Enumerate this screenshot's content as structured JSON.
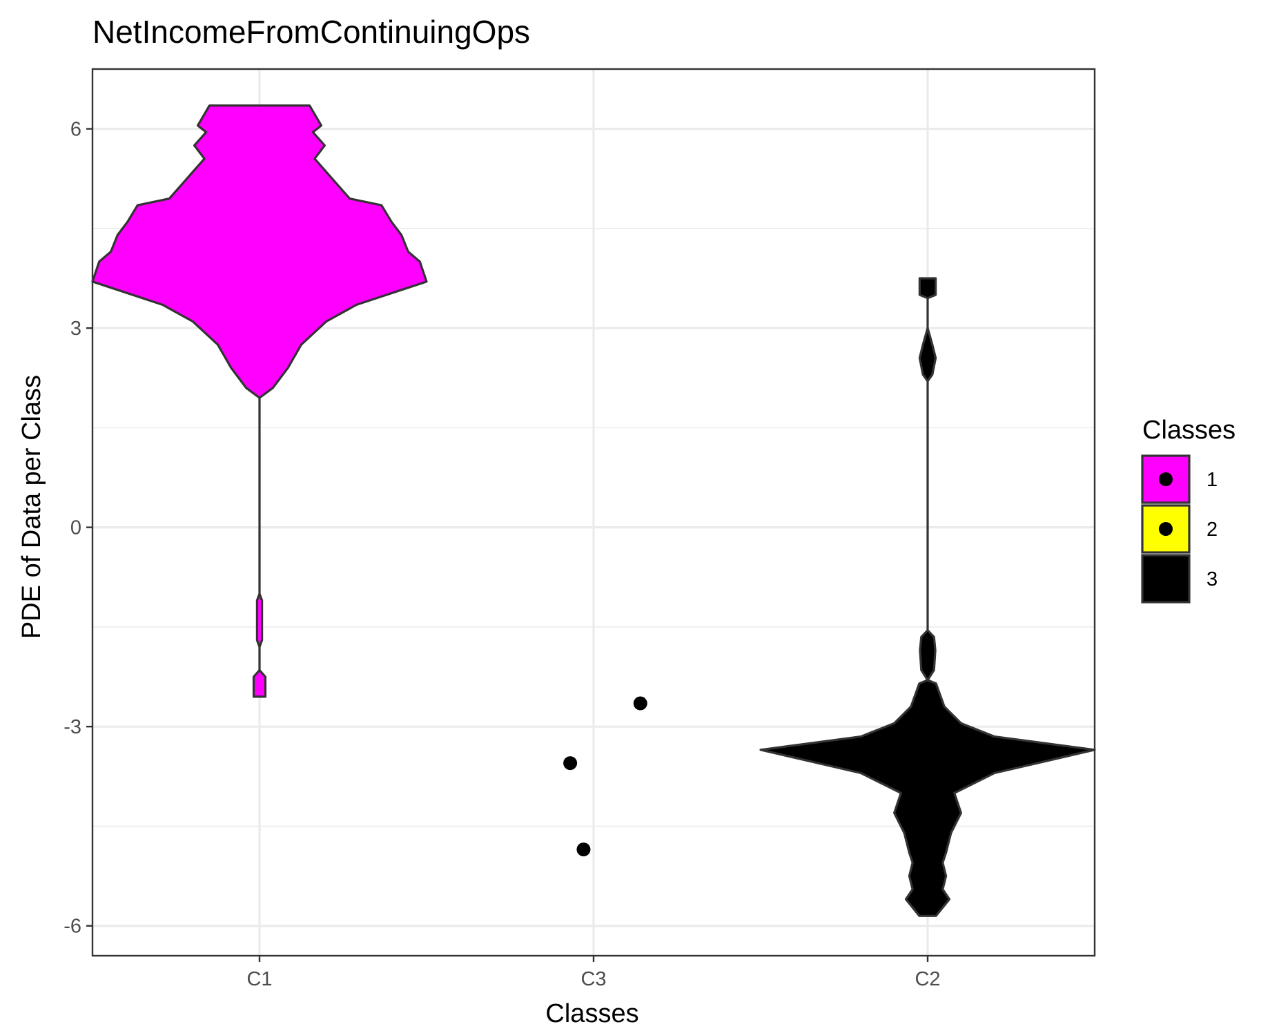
{
  "chart_data": {
    "type": "violin",
    "title": "NetIncomeFromContinuingOps",
    "xlabel": "Classes",
    "ylabel": "PDE of Data per Class",
    "categories": [
      "C1",
      "C3",
      "C2"
    ],
    "ylim": [
      -6.45,
      6.9
    ],
    "yticks": [
      -6,
      -3,
      0,
      3,
      6
    ],
    "ytick_labels": [
      "-6",
      "-3",
      "0",
      "3",
      "6"
    ],
    "grid": true,
    "legend": {
      "title": "Classes",
      "position": "right",
      "entries": [
        {
          "label": "1",
          "color": "#ff00ff"
        },
        {
          "label": "2",
          "color": "#ffff00"
        },
        {
          "label": "3",
          "color": "#000000"
        }
      ]
    },
    "violins": [
      {
        "category": "C1",
        "class": "1",
        "color": "#ff00ff",
        "y_min": -2.55,
        "y_max": 6.35,
        "profile": [
          [
            6.35,
            0.3
          ],
          [
            6.05,
            0.37
          ],
          [
            5.95,
            0.32
          ],
          [
            5.75,
            0.39
          ],
          [
            5.55,
            0.33
          ],
          [
            5.15,
            0.47
          ],
          [
            4.95,
            0.54
          ],
          [
            4.85,
            0.73
          ],
          [
            4.6,
            0.79
          ],
          [
            4.4,
            0.85
          ],
          [
            4.15,
            0.89
          ],
          [
            4.0,
            0.96
          ],
          [
            3.7,
            1.0
          ],
          [
            3.35,
            0.58
          ],
          [
            3.1,
            0.4
          ],
          [
            2.75,
            0.25
          ],
          [
            2.4,
            0.17
          ],
          [
            2.1,
            0.08
          ],
          [
            1.95,
            0.0
          ],
          [
            -1.0,
            0.0
          ],
          [
            -1.1,
            0.015
          ],
          [
            -1.7,
            0.015
          ],
          [
            -1.8,
            0.0
          ],
          [
            -2.15,
            0.0
          ],
          [
            -2.25,
            0.035
          ],
          [
            -2.55,
            0.035
          ]
        ]
      },
      {
        "category": "C2",
        "class": "3",
        "color": "#000000",
        "y_min": -5.85,
        "y_max": 3.75,
        "profile": [
          [
            3.75,
            0.048
          ],
          [
            3.5,
            0.048
          ],
          [
            3.45,
            0.0
          ],
          [
            3.0,
            0.0
          ],
          [
            2.75,
            0.028
          ],
          [
            2.55,
            0.048
          ],
          [
            2.3,
            0.028
          ],
          [
            2.2,
            0.0
          ],
          [
            -1.55,
            0.0
          ],
          [
            -1.65,
            0.038
          ],
          [
            -1.85,
            0.046
          ],
          [
            -2.15,
            0.038
          ],
          [
            -2.3,
            0.0
          ],
          [
            -2.35,
            0.05
          ],
          [
            -2.7,
            0.1
          ],
          [
            -2.95,
            0.2
          ],
          [
            -3.15,
            0.4
          ],
          [
            -3.35,
            1.0
          ],
          [
            -3.7,
            0.4
          ],
          [
            -4.0,
            0.16
          ],
          [
            -4.3,
            0.2
          ],
          [
            -4.6,
            0.14
          ],
          [
            -4.9,
            0.11
          ],
          [
            -5.05,
            0.09
          ],
          [
            -5.25,
            0.11
          ],
          [
            -5.45,
            0.09
          ],
          [
            -5.6,
            0.13
          ],
          [
            -5.85,
            0.05
          ]
        ]
      }
    ],
    "points": [
      {
        "category": "C3",
        "x_offset": -0.07,
        "y": -3.55,
        "class": "3"
      },
      {
        "category": "C3",
        "x_offset": 0.14,
        "y": -2.65,
        "class": "3"
      },
      {
        "category": "C3",
        "x_offset": -0.03,
        "y": -4.85,
        "class": "3"
      }
    ]
  }
}
